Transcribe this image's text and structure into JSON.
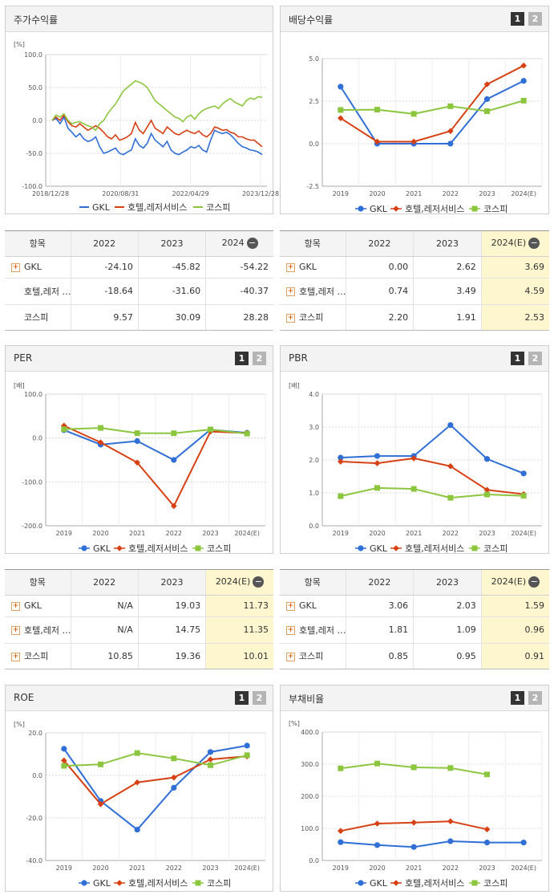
{
  "colors": {
    "gkl": "#2f6fd6",
    "hotel": "#d64012",
    "kospi": "#8cc63f"
  },
  "legend": [
    "GKL",
    "호텔,레저서비스",
    "코스피"
  ],
  "panels": {
    "stock": {
      "title": "주가수익률"
    },
    "div": {
      "title": "배당수익률",
      "btn1": "1",
      "btn2": "2"
    },
    "per": {
      "title": "PER",
      "btn1": "1",
      "btn2": "2"
    },
    "pbr": {
      "title": "PBR",
      "btn1": "1",
      "btn2": "2"
    },
    "roe": {
      "title": "ROE",
      "btn1": "1",
      "btn2": "2"
    },
    "debt": {
      "title": "부채비율",
      "btn1": "1",
      "btn2": "2"
    }
  },
  "tables": {
    "stock": {
      "headers": [
        "항목",
        "2022",
        "2023",
        "2024"
      ],
      "rows": [
        {
          "name": "GKL",
          "plus": true,
          "v": [
            "-24.10",
            "-45.82",
            "-54.22"
          ]
        },
        {
          "name": "호텔,레저 …",
          "plus": false,
          "v": [
            "-18.64",
            "-31.60",
            "-40.37"
          ]
        },
        {
          "name": "코스피",
          "plus": false,
          "v": [
            "9.57",
            "30.09",
            "28.28"
          ]
        }
      ]
    },
    "div": {
      "headers": [
        "항목",
        "2022",
        "2023",
        "2024(E)"
      ],
      "rows": [
        {
          "name": "GKL",
          "plus": true,
          "v": [
            "0.00",
            "2.62",
            "3.69"
          ]
        },
        {
          "name": "호텔,레저 …",
          "plus": true,
          "v": [
            "0.74",
            "3.49",
            "4.59"
          ]
        },
        {
          "name": "코스피",
          "plus": true,
          "v": [
            "2.20",
            "1.91",
            "2.53"
          ]
        }
      ]
    },
    "per": {
      "headers": [
        "항목",
        "2022",
        "2023",
        "2024(E)"
      ],
      "rows": [
        {
          "name": "GKL",
          "plus": true,
          "v": [
            "N/A",
            "19.03",
            "11.73"
          ]
        },
        {
          "name": "호텔,레저 …",
          "plus": true,
          "v": [
            "N/A",
            "14.75",
            "11.35"
          ]
        },
        {
          "name": "코스피",
          "plus": true,
          "v": [
            "10.85",
            "19.36",
            "10.01"
          ]
        }
      ]
    },
    "pbr": {
      "headers": [
        "항목",
        "2022",
        "2023",
        "2024(E)"
      ],
      "rows": [
        {
          "name": "GKL",
          "plus": true,
          "v": [
            "3.06",
            "2.03",
            "1.59"
          ]
        },
        {
          "name": "호텔,레저 …",
          "plus": true,
          "v": [
            "1.81",
            "1.09",
            "0.96"
          ]
        },
        {
          "name": "코스피",
          "plus": true,
          "v": [
            "0.85",
            "0.95",
            "0.91"
          ]
        }
      ]
    }
  },
  "chart_data": [
    {
      "id": "stock",
      "type": "line",
      "title": "주가수익률",
      "ylabel": "[%]",
      "ylim": [
        -100,
        100
      ],
      "yticks": [
        "100.0",
        "50.0",
        "0.0",
        "-50.0",
        "-100.0"
      ],
      "xticklabels": [
        "2018/12/28",
        "2020/08/31",
        "2022/04/29",
        "2023/12/28"
      ],
      "series": [
        {
          "name": "GKL",
          "values": [
            0,
            3,
            -5,
            5,
            -12,
            -18,
            -25,
            -20,
            -28,
            -32,
            -30,
            -25,
            -40,
            -50,
            -48,
            -45,
            -42,
            -50,
            -52,
            -48,
            -45,
            -28,
            -38,
            -42,
            -35,
            -20,
            -30,
            -35,
            -40,
            -32,
            -45,
            -50,
            -52,
            -48,
            -45,
            -40,
            -42,
            -38,
            -45,
            -48,
            -30,
            -15,
            -18,
            -20,
            -18,
            -22,
            -28,
            -35,
            -40,
            -42,
            -45,
            -46,
            -48,
            -52
          ]
        },
        {
          "name": "호텔,레저서비스",
          "values": [
            0,
            5,
            0,
            8,
            -2,
            -8,
            -10,
            -5,
            -10,
            -15,
            -12,
            -8,
            -12,
            -18,
            -25,
            -28,
            -22,
            -30,
            -28,
            -25,
            -20,
            -3,
            -15,
            -20,
            -10,
            0,
            -12,
            -16,
            -20,
            -10,
            -15,
            -20,
            -22,
            -18,
            -15,
            -18,
            -20,
            -16,
            -22,
            -25,
            -20,
            -10,
            -12,
            -15,
            -14,
            -18,
            -20,
            -25,
            -25,
            -28,
            -30,
            -30,
            -35,
            -40
          ]
        },
        {
          "name": "코스피",
          "values": [
            0,
            8,
            5,
            10,
            0,
            -5,
            -3,
            -2,
            -5,
            -8,
            -10,
            -15,
            -5,
            0,
            10,
            18,
            25,
            35,
            45,
            50,
            55,
            60,
            58,
            55,
            50,
            40,
            30,
            25,
            20,
            15,
            10,
            5,
            3,
            -2,
            5,
            8,
            2,
            10,
            15,
            18,
            20,
            22,
            18,
            25,
            30,
            33,
            28,
            25,
            22,
            30,
            34,
            32,
            36,
            35
          ]
        }
      ]
    },
    {
      "id": "div",
      "type": "line",
      "title": "배당수익률",
      "ylabel": "",
      "ylim": [
        -2.5,
        5
      ],
      "yticks": [
        "5.0",
        "2.5",
        "0.0",
        "-2.5"
      ],
      "categories": [
        "2019",
        "2020",
        "2021",
        "2022",
        "2023",
        "2024(E)"
      ],
      "series": [
        {
          "name": "GKL",
          "values": [
            3.35,
            0.0,
            0.0,
            0.0,
            2.62,
            3.69
          ]
        },
        {
          "name": "호텔,레저서비스",
          "values": [
            1.5,
            0.12,
            0.12,
            0.74,
            3.49,
            4.59
          ]
        },
        {
          "name": "코스피",
          "values": [
            1.98,
            2.0,
            1.75,
            2.2,
            1.91,
            2.53
          ]
        }
      ]
    },
    {
      "id": "per",
      "type": "line",
      "title": "PER",
      "ylabel": "[배]",
      "ylim": [
        -200,
        100
      ],
      "yticks": [
        "100.0",
        "0.0",
        "-100.0",
        "-200.0"
      ],
      "categories": [
        "2019",
        "2020",
        "2021",
        "2022",
        "2023",
        "2024(E)"
      ],
      "series": [
        {
          "name": "GKL",
          "values": [
            18,
            -15,
            -7,
            -50,
            19.03,
            11.73
          ]
        },
        {
          "name": "호텔,레저서비스",
          "values": [
            28,
            -10,
            -56,
            -155,
            14.75,
            11.35
          ]
        },
        {
          "name": "코스피",
          "values": [
            20,
            23,
            11,
            10.85,
            19.36,
            10.01
          ]
        }
      ]
    },
    {
      "id": "pbr",
      "type": "line",
      "title": "PBR",
      "ylabel": "[배]",
      "ylim": [
        0,
        4
      ],
      "yticks": [
        "4.0",
        "3.0",
        "2.0",
        "1.0",
        "0.0"
      ],
      "categories": [
        "2019",
        "2020",
        "2021",
        "2022",
        "2023",
        "2024(E)"
      ],
      "series": [
        {
          "name": "GKL",
          "values": [
            2.07,
            2.12,
            2.12,
            3.06,
            2.03,
            1.59
          ]
        },
        {
          "name": "호텔,레저서비스",
          "values": [
            1.95,
            1.9,
            2.05,
            1.81,
            1.09,
            0.96
          ]
        },
        {
          "name": "코스피",
          "values": [
            0.9,
            1.15,
            1.12,
            0.85,
            0.95,
            0.91
          ]
        }
      ]
    },
    {
      "id": "roe",
      "type": "line",
      "title": "ROE",
      "ylabel": "[%]",
      "ylim": [
        -40,
        20
      ],
      "yticks": [
        "20.0",
        "0.0",
        "-20.0",
        "-40.0"
      ],
      "categories": [
        "2019",
        "2020",
        "2021",
        "2022",
        "2023",
        "2024(E)"
      ],
      "series": [
        {
          "name": "GKL",
          "values": [
            12.5,
            -12,
            -25.5,
            -5.8,
            11,
            14
          ]
        },
        {
          "name": "호텔,레저서비스",
          "values": [
            7,
            -13.5,
            -3.3,
            -1,
            7.5,
            9
          ]
        },
        {
          "name": "코스피",
          "values": [
            4.5,
            5.2,
            10.5,
            8,
            4.8,
            9.5
          ]
        }
      ]
    },
    {
      "id": "debt",
      "type": "line",
      "title": "부채비율",
      "ylabel": "[%]",
      "ylim": [
        0,
        400
      ],
      "yticks": [
        "400.0",
        "300.0",
        "200.0",
        "100.0",
        "0.0"
      ],
      "categories": [
        "2019",
        "2020",
        "2021",
        "2022",
        "2023",
        "2024(E)"
      ],
      "series": [
        {
          "name": "GKL",
          "values": [
            57,
            48,
            42,
            60,
            56,
            56
          ]
        },
        {
          "name": "호텔,레저서비스",
          "values": [
            92,
            115,
            118,
            122,
            97,
            null
          ]
        },
        {
          "name": "코스피",
          "values": [
            287,
            302,
            290,
            288,
            268,
            null
          ]
        }
      ]
    }
  ]
}
